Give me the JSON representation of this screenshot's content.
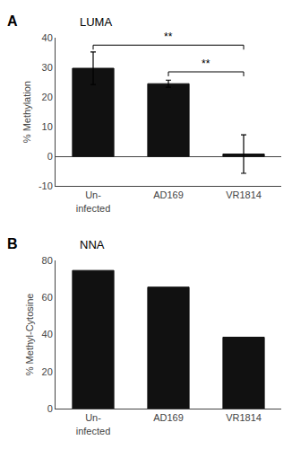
{
  "chart_data": [
    {
      "type": "bar",
      "panel_label": "A",
      "title": "LUMA",
      "categories": [
        "Un-\ninfected",
        "AD169",
        "VR1814"
      ],
      "values": [
        29.7,
        24.5,
        0.8
      ],
      "errors": [
        5.5,
        1.2,
        6.5
      ],
      "ylabel": "% Methylation",
      "ylim": [
        -10,
        40
      ],
      "yticks": [
        -10,
        0,
        10,
        20,
        30,
        40
      ],
      "color": "#111111",
      "grid": false,
      "annotations": [
        {
          "text": "**",
          "x1": "Un-\ninfected",
          "x2": "VR1814",
          "y": 37.5
        },
        {
          "text": "**",
          "x1": "AD169",
          "x2": "VR1814",
          "y": 28.5
        }
      ]
    },
    {
      "type": "bar",
      "panel_label": "B",
      "title": "NNA",
      "categories": [
        "Un-\ninfected",
        "AD169",
        "VR1814"
      ],
      "values": [
        74.5,
        65.5,
        38.5
      ],
      "ylabel": "% Methyl-Cytosine",
      "ylim": [
        0,
        80
      ],
      "yticks": [
        0,
        20,
        40,
        60,
        80
      ],
      "color": "#111111",
      "grid": false
    }
  ]
}
